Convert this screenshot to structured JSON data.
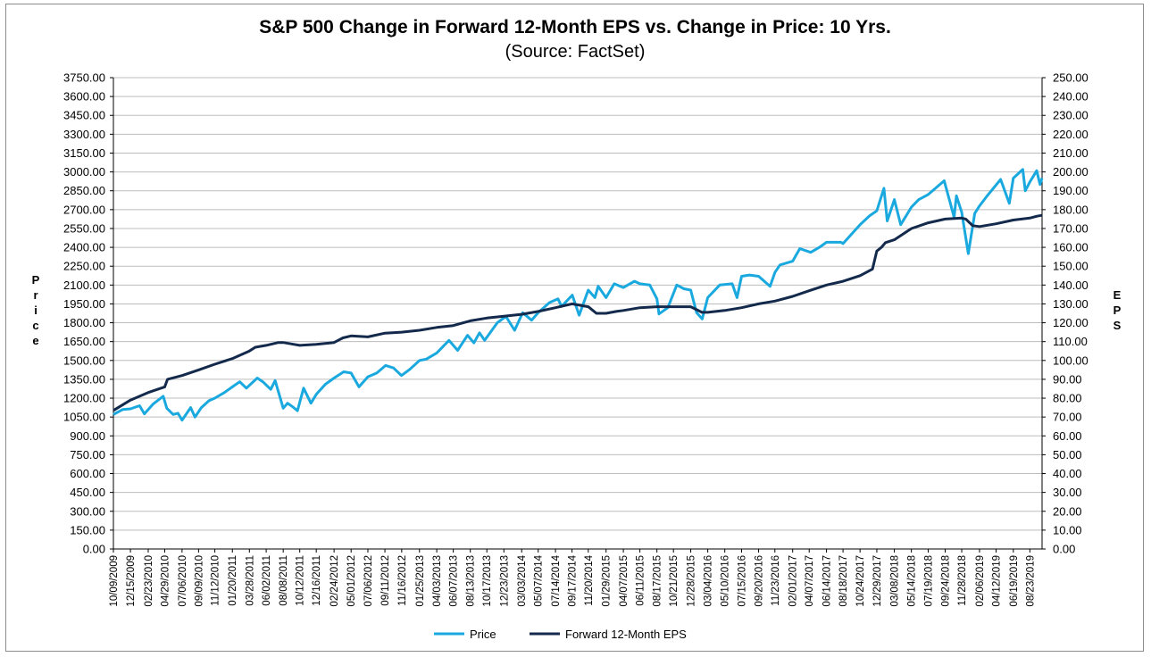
{
  "chart_data": {
    "type": "line",
    "title": "S&P 500 Change in Forward 12-Month EPS vs. Change in Price: 10 Yrs.",
    "subtitle": "(Source: FactSet)",
    "ylabel_left": "Price",
    "ylabel_right": "EPS",
    "ylim_left": [
      0,
      3750
    ],
    "ylim_right": [
      0,
      250
    ],
    "y_ticks_left": [
      "0.00",
      "150.00",
      "300.00",
      "450.00",
      "600.00",
      "750.00",
      "900.00",
      "1050.00",
      "1200.00",
      "1350.00",
      "1500.00",
      "1650.00",
      "1800.00",
      "1950.00",
      "2100.00",
      "2250.00",
      "2400.00",
      "2550.00",
      "2700.00",
      "2850.00",
      "3000.00",
      "3150.00",
      "3300.00",
      "3450.00",
      "3600.00",
      "3750.00"
    ],
    "y_ticks_right": [
      "0.00",
      "10.00",
      "20.00",
      "30.00",
      "40.00",
      "50.00",
      "60.00",
      "70.00",
      "80.00",
      "90.00",
      "100.00",
      "110.00",
      "120.00",
      "130.00",
      "140.00",
      "150.00",
      "160.00",
      "170.00",
      "180.00",
      "190.00",
      "200.00",
      "210.00",
      "220.00",
      "230.00",
      "240.00",
      "250.00"
    ],
    "x_ticks": [
      "10/09/2009",
      "12/15/2009",
      "02/23/2010",
      "04/29/2010",
      "07/06/2010",
      "09/09/2010",
      "11/12/2010",
      "01/20/2011",
      "03/28/2011",
      "06/02/2011",
      "08/08/2011",
      "10/12/2011",
      "12/16/2011",
      "02/24/2012",
      "05/01/2012",
      "07/06/2012",
      "09/11/2012",
      "11/16/2012",
      "01/25/2013",
      "04/03/2013",
      "06/07/2013",
      "08/13/2013",
      "10/17/2013",
      "12/23/2013",
      "03/03/2014",
      "05/07/2014",
      "07/14/2014",
      "09/17/2014",
      "11/20/2014",
      "01/29/2015",
      "04/07/2015",
      "06/11/2015",
      "08/17/2015",
      "10/21/2015",
      "12/28/2015",
      "03/04/2016",
      "05/10/2016",
      "07/15/2016",
      "09/20/2016",
      "11/23/2016",
      "02/01/2017",
      "04/07/2017",
      "06/14/2017",
      "08/18/2017",
      "10/24/2017",
      "12/29/2017",
      "03/08/2018",
      "05/14/2018",
      "07/19/2018",
      "09/24/2018",
      "11/28/2018",
      "02/06/2019",
      "04/12/2019",
      "06/19/2019",
      "08/23/2019"
    ],
    "grid": true,
    "legend_position": "bottom",
    "series": [
      {
        "name": "Price",
        "axis": "left",
        "color": "#1aa9df",
        "x": [
          "10/09/2009",
          "11/15/2009",
          "12/15/2009",
          "01/20/2010",
          "02/08/2010",
          "03/15/2010",
          "04/23/2010",
          "05/07/2010",
          "06/01/2010",
          "06/20/2010",
          "07/06/2010",
          "08/09/2010",
          "08/26/2010",
          "09/20/2010",
          "10/20/2010",
          "11/12/2010",
          "12/20/2010",
          "01/20/2011",
          "02/18/2011",
          "03/16/2011",
          "04/28/2011",
          "05/20/2011",
          "06/20/2011",
          "07/07/2011",
          "08/08/2011",
          "08/25/2011",
          "09/15/2011",
          "10/03/2011",
          "10/27/2011",
          "11/25/2011",
          "12/16/2011",
          "01/20/2012",
          "02/24/2012",
          "04/02/2012",
          "05/01/2012",
          "06/01/2012",
          "07/06/2012",
          "08/10/2012",
          "09/14/2012",
          "10/15/2012",
          "11/15/2012",
          "12/18/2012",
          "01/25/2013",
          "02/20/2013",
          "04/03/2013",
          "05/21/2013",
          "06/24/2013",
          "08/02/2013",
          "08/27/2013",
          "09/18/2013",
          "10/08/2013",
          "11/27/2013",
          "12/31/2013",
          "02/03/2014",
          "03/07/2014",
          "04/11/2014",
          "05/07/2014",
          "06/20/2014",
          "07/24/2014",
          "08/07/2014",
          "09/18/2014",
          "10/15/2014",
          "11/20/2014",
          "12/16/2014",
          "12/29/2014",
          "01/29/2015",
          "03/02/2015",
          "04/07/2015",
          "05/21/2015",
          "06/11/2015",
          "07/20/2015",
          "08/17/2015",
          "08/25/2015",
          "09/29/2015",
          "11/03/2015",
          "12/01/2015",
          "12/28/2015",
          "01/20/2016",
          "02/11/2016",
          "03/04/2016",
          "04/20/2016",
          "06/08/2016",
          "06/27/2016",
          "07/15/2016",
          "08/15/2016",
          "09/20/2016",
          "11/04/2016",
          "11/23/2016",
          "12/13/2016",
          "02/01/2017",
          "03/01/2017",
          "04/13/2017",
          "05/17/2017",
          "06/14/2017",
          "08/10/2017",
          "08/18/2017",
          "10/24/2017",
          "11/30/2017",
          "12/29/2017",
          "01/26/2018",
          "02/08/2018",
          "03/08/2018",
          "04/02/2018",
          "05/14/2018",
          "06/12/2018",
          "07/19/2018",
          "09/20/2018",
          "10/29/2018",
          "11/07/2018",
          "11/28/2018",
          "12/24/2018",
          "01/18/2019",
          "02/06/2019",
          "03/08/2019",
          "04/30/2019",
          "06/03/2019",
          "06/19/2019",
          "07/26/2019",
          "08/05/2019",
          "08/23/2019",
          "09/19/2019",
          "10/02/2019",
          "10/10/2019"
        ],
        "values": [
          1070,
          1110,
          1115,
          1140,
          1075,
          1155,
          1215,
          1120,
          1070,
          1080,
          1025,
          1125,
          1050,
          1125,
          1180,
          1200,
          1245,
          1290,
          1330,
          1280,
          1360,
          1330,
          1270,
          1340,
          1120,
          1160,
          1130,
          1100,
          1280,
          1160,
          1230,
          1310,
          1360,
          1410,
          1400,
          1290,
          1370,
          1400,
          1460,
          1440,
          1380,
          1430,
          1500,
          1510,
          1560,
          1660,
          1580,
          1700,
          1640,
          1720,
          1660,
          1800,
          1850,
          1740,
          1880,
          1820,
          1880,
          1960,
          1990,
          1930,
          2020,
          1860,
          2060,
          2000,
          2090,
          2000,
          2110,
          2080,
          2130,
          2110,
          2100,
          1990,
          1870,
          1920,
          2100,
          2070,
          2060,
          1880,
          1830,
          2000,
          2100,
          2110,
          2000,
          2170,
          2180,
          2170,
          2090,
          2200,
          2260,
          2290,
          2390,
          2360,
          2400,
          2440,
          2440,
          2430,
          2580,
          2650,
          2690,
          2870,
          2610,
          2780,
          2580,
          2720,
          2780,
          2820,
          2930,
          2640,
          2810,
          2680,
          2350,
          2670,
          2730,
          2810,
          2940,
          2750,
          2950,
          3020,
          2850,
          2920,
          3010,
          2900,
          2950
        ]
      },
      {
        "name": "Forward 12-Month EPS",
        "axis": "right",
        "color": "#142a4c",
        "x": [
          "10/09/2009",
          "12/15/2009",
          "02/23/2010",
          "04/29/2010",
          "05/10/2010",
          "07/06/2010",
          "09/09/2010",
          "11/12/2010",
          "01/20/2011",
          "03/28/2011",
          "04/20/2011",
          "06/02/2011",
          "07/20/2011",
          "08/08/2011",
          "09/20/2011",
          "10/12/2011",
          "12/16/2011",
          "02/24/2012",
          "03/30/2012",
          "05/01/2012",
          "07/06/2012",
          "09/11/2012",
          "11/16/2012",
          "01/25/2013",
          "04/03/2013",
          "06/07/2013",
          "08/13/2013",
          "10/17/2013",
          "12/23/2013",
          "03/03/2014",
          "05/07/2014",
          "07/14/2014",
          "09/17/2014",
          "11/20/2014",
          "12/22/2014",
          "01/29/2015",
          "03/10/2015",
          "04/07/2015",
          "06/11/2015",
          "08/17/2015",
          "10/21/2015",
          "12/28/2015",
          "02/10/2016",
          "03/04/2016",
          "05/10/2016",
          "07/15/2016",
          "09/20/2016",
          "11/23/2016",
          "02/01/2017",
          "04/07/2017",
          "06/14/2017",
          "08/18/2017",
          "10/24/2017",
          "12/12/2017",
          "12/29/2017",
          "01/16/2018",
          "02/01/2018",
          "03/08/2018",
          "05/14/2018",
          "07/19/2018",
          "09/24/2018",
          "11/28/2018",
          "12/14/2018",
          "01/10/2019",
          "02/06/2019",
          "04/12/2019",
          "06/19/2019",
          "08/23/2019",
          "09/20/2019",
          "10/10/2019"
        ],
        "values": [
          73.5,
          79,
          83,
          86,
          90,
          92,
          95,
          98,
          101,
          105,
          107,
          108,
          109.5,
          109.5,
          108.5,
          108,
          108.5,
          109.5,
          112,
          113,
          112.5,
          114.5,
          115,
          116,
          117.5,
          118.5,
          121,
          122.5,
          123.5,
          124.5,
          126,
          128,
          130,
          128.5,
          125,
          125,
          126,
          126.5,
          128,
          128.5,
          128.5,
          128.5,
          125.5,
          125.5,
          126.5,
          128,
          130,
          131.5,
          134,
          137,
          140,
          142,
          145,
          148.5,
          158,
          160,
          162.5,
          164,
          170,
          173,
          175,
          175.5,
          175,
          171.5,
          171,
          172.5,
          174.5,
          175.5,
          176.5,
          177
        ]
      }
    ]
  },
  "legend": {
    "price_label": "Price",
    "eps_label": "Forward 12-Month EPS"
  }
}
